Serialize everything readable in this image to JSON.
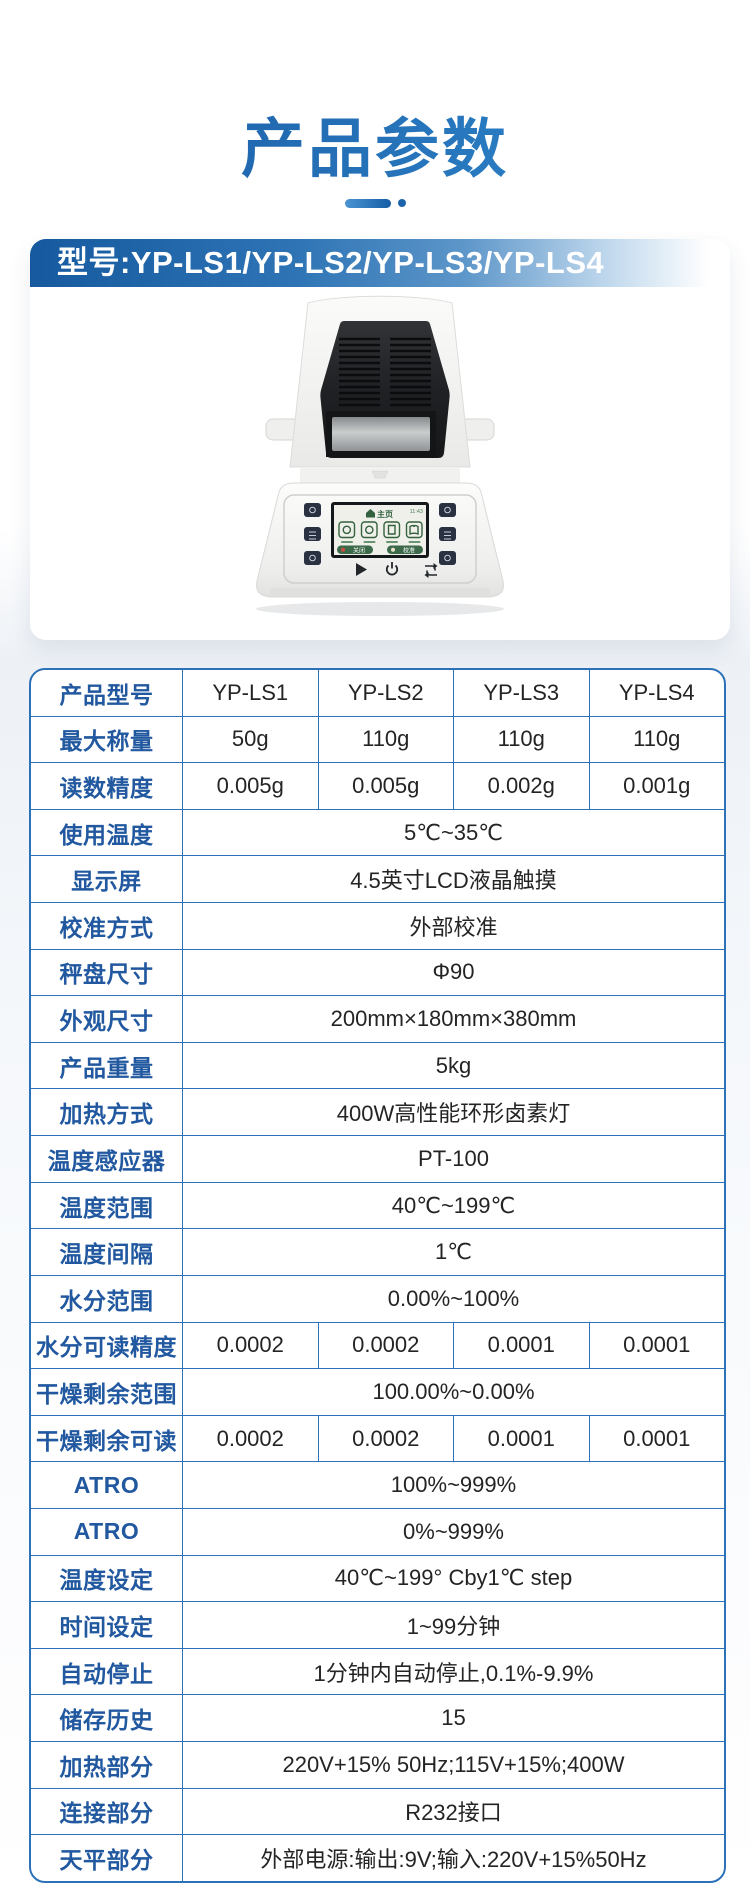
{
  "page": {
    "title": "产品参数"
  },
  "card": {
    "model_header": "型号:YP-LS1/YP-LS2/YP-LS3/YP-LS4"
  },
  "device_screen": {
    "home_label": "主页",
    "time": "11:43",
    "button_left": "关闭",
    "button_right": "校准"
  },
  "colors": {
    "accent_blue": "#2d72b8",
    "label_blue": "#21589f",
    "header_gradient_start": "#16599f",
    "title_gradient": [
      "#1c5fa8",
      "#2e84c9"
    ]
  },
  "table": {
    "rows": [
      {
        "label": "产品型号",
        "cells": [
          "YP-LS1",
          "YP-LS2",
          "YP-LS3",
          "YP-LS4"
        ]
      },
      {
        "label": "最大称量",
        "cells": [
          "50g",
          "110g",
          "110g",
          "110g"
        ]
      },
      {
        "label": "读数精度",
        "cells": [
          "0.005g",
          "0.005g",
          "0.002g",
          "0.001g"
        ]
      },
      {
        "label": "使用温度",
        "span": "5℃~35℃"
      },
      {
        "label": "显示屏",
        "span": "4.5英寸LCD液晶触摸"
      },
      {
        "label": "校准方式",
        "span": "外部校准"
      },
      {
        "label": "秤盘尺寸",
        "span": "Φ90"
      },
      {
        "label": "外观尺寸",
        "span": "200mm×180mm×380mm"
      },
      {
        "label": "产品重量",
        "span": "5kg"
      },
      {
        "label": "加热方式",
        "span": "400W高性能环形卤素灯"
      },
      {
        "label": "温度感应器",
        "span": "PT-100"
      },
      {
        "label": "温度范围",
        "span": "40℃~199℃"
      },
      {
        "label": "温度间隔",
        "span": "1℃"
      },
      {
        "label": "水分范围",
        "span": "0.00%~100%"
      },
      {
        "label": "水分可读精度",
        "cells": [
          "0.0002",
          "0.0002",
          "0.0001",
          "0.0001"
        ]
      },
      {
        "label": "干燥剩余范围",
        "span": "100.00%~0.00%"
      },
      {
        "label": "干燥剩余可读",
        "cells": [
          "0.0002",
          "0.0002",
          "0.0001",
          "0.0001"
        ]
      },
      {
        "label": "ATRO",
        "span": "100%~999%"
      },
      {
        "label": "ATRO",
        "span": "0%~999%"
      },
      {
        "label": "温度设定",
        "span": "40℃~199° Cby1℃ step"
      },
      {
        "label": "时间设定",
        "span": "1~99分钟"
      },
      {
        "label": "自动停止",
        "span": "1分钟内自动停止,0.1%-9.9%"
      },
      {
        "label": "储存历史",
        "span": "15"
      },
      {
        "label": "加热部分",
        "span": "220V+15% 50Hz;115V+15%;400W"
      },
      {
        "label": "连接部分",
        "span": "R232接口"
      },
      {
        "label": "天平部分",
        "span": "外部电源:输出:9V;输入:220V+15%50Hz"
      }
    ]
  }
}
